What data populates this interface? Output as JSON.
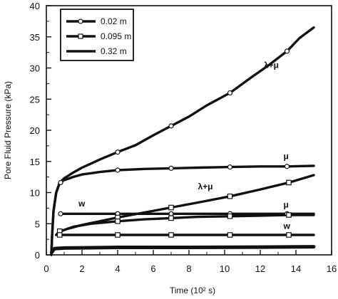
{
  "chart_data": {
    "type": "line",
    "xlabel": "Time (10² s)",
    "ylabel": "Pore Fluid Pressure (kPa)",
    "xlim": [
      0,
      16
    ],
    "ylim": [
      0,
      40
    ],
    "xticks": [
      0,
      2,
      4,
      6,
      8,
      10,
      12,
      14,
      16
    ],
    "yticks": [
      0,
      5,
      10,
      15,
      20,
      25,
      30,
      35,
      40
    ],
    "xtick_labels": [
      "0",
      "2",
      "4",
      "6",
      "8",
      "10",
      "12",
      "14",
      "16"
    ],
    "ytick_labels": [
      "0",
      "5",
      "10",
      "15",
      "20",
      "25",
      "30",
      "35",
      "40"
    ],
    "grid": false,
    "legend_position": "top-left",
    "legend": [
      {
        "label": "0.02 m",
        "marker": "circle"
      },
      {
        "label": "0.095 m",
        "marker": "square"
      },
      {
        "label": "0.32 m",
        "marker": "none"
      }
    ],
    "series": [
      {
        "name": "0.02 m",
        "label": "λ+μ",
        "marker": "circle",
        "x": [
          0.28,
          0.32,
          0.4,
          0.55,
          0.75,
          1.0,
          1.5,
          2.0,
          3.0,
          4.0,
          5.0,
          6.0,
          7.0,
          8.0,
          9.0,
          10.3,
          11.5,
          12.5,
          13.5,
          14.2,
          15.0
        ],
        "y": [
          0.0,
          3.0,
          7.0,
          10.0,
          11.6,
          12.3,
          13.2,
          14.0,
          15.3,
          16.5,
          17.6,
          19.2,
          20.7,
          22.2,
          24.0,
          26.0,
          28.5,
          30.5,
          32.7,
          34.8,
          36.5
        ]
      },
      {
        "name": "0.02 m",
        "label": "μ",
        "marker": "circle",
        "x": [
          0.28,
          0.32,
          0.4,
          0.55,
          0.75,
          1.0,
          1.5,
          2.0,
          3.0,
          4.0,
          5.5,
          7.0,
          8.5,
          10.3,
          12.0,
          13.5,
          15.0
        ],
        "y": [
          0.0,
          3.0,
          7.0,
          10.0,
          11.6,
          12.0,
          12.5,
          12.9,
          13.3,
          13.6,
          13.8,
          13.9,
          14.0,
          14.1,
          14.2,
          14.2,
          14.3
        ]
      },
      {
        "name": "0.02 m",
        "label": "w",
        "marker": "circle",
        "x": [
          0.8,
          2.0,
          4.0,
          7.0,
          10.3,
          13.5,
          15.0
        ],
        "y": [
          6.6,
          6.6,
          6.6,
          6.6,
          6.6,
          6.6,
          6.6
        ]
      },
      {
        "name": "0.095 m",
        "label": "λ+μ",
        "marker": "square",
        "x": [
          0.55,
          0.65,
          0.8,
          1.2,
          2.0,
          3.0,
          4.0,
          5.5,
          7.0,
          8.5,
          10.3,
          12.0,
          13.6,
          15.0
        ],
        "y": [
          3.2,
          3.5,
          3.8,
          4.2,
          4.8,
          5.4,
          6.0,
          6.8,
          7.6,
          8.4,
          9.4,
          10.5,
          11.6,
          12.8
        ]
      },
      {
        "name": "0.095 m",
        "label": "μ",
        "marker": "square",
        "x": [
          0.55,
          0.65,
          0.8,
          1.5,
          2.5,
          4.0,
          5.5,
          7.0,
          8.5,
          10.3,
          12.0,
          13.6,
          15.0
        ],
        "y": [
          3.2,
          3.5,
          3.8,
          4.5,
          5.0,
          5.4,
          5.7,
          5.9,
          6.1,
          6.2,
          6.3,
          6.4,
          6.4
        ]
      },
      {
        "name": "0.095 m",
        "label": "w",
        "marker": "square",
        "x": [
          0.8,
          2.0,
          4.0,
          7.0,
          10.3,
          13.6,
          15.0
        ],
        "y": [
          3.2,
          3.2,
          3.2,
          3.2,
          3.2,
          3.2,
          3.2
        ]
      },
      {
        "name": "0.32 m",
        "label": "",
        "marker": "none",
        "x": [
          0.3,
          0.45,
          1.0,
          4.0,
          8.0,
          12.0,
          15.0
        ],
        "y": [
          0.4,
          1.0,
          1.1,
          1.2,
          1.2,
          1.25,
          1.3
        ]
      }
    ],
    "markers": [
      {
        "series": 0,
        "shape": "circle",
        "x": [
          0.8,
          4.0,
          7.0,
          10.3,
          13.5
        ],
        "y": [
          11.6,
          16.5,
          20.7,
          26.0,
          32.7
        ]
      },
      {
        "series": 1,
        "shape": "circle",
        "x": [
          4.0,
          7.0,
          10.3,
          13.5
        ],
        "y": [
          13.6,
          13.9,
          14.1,
          14.2
        ]
      },
      {
        "series": 2,
        "shape": "circle",
        "x": [
          0.8,
          4.0,
          7.0,
          10.3,
          13.5
        ],
        "y": [
          6.6,
          6.6,
          6.6,
          6.6,
          6.6
        ]
      },
      {
        "series": 3,
        "shape": "square",
        "x": [
          0.75,
          4.0,
          7.0,
          10.3,
          13.6
        ],
        "y": [
          3.8,
          6.0,
          7.6,
          9.4,
          11.6
        ]
      },
      {
        "series": 4,
        "shape": "square",
        "x": [
          4.0,
          7.0,
          10.3,
          13.6
        ],
        "y": [
          5.4,
          5.9,
          6.2,
          6.4
        ]
      },
      {
        "series": 5,
        "shape": "square",
        "x": [
          0.75,
          4.0,
          7.0,
          10.3,
          13.6
        ],
        "y": [
          3.2,
          3.2,
          3.2,
          3.2,
          3.2
        ]
      }
    ],
    "annotations": [
      {
        "text": "λ+μ",
        "x": 12.2,
        "y": 30.0
      },
      {
        "text": "μ",
        "x": 13.3,
        "y": 15.4
      },
      {
        "text": "λ+μ",
        "x": 8.5,
        "y": 10.5
      },
      {
        "text": "w",
        "x": 1.8,
        "y": 7.8
      },
      {
        "text": "μ",
        "x": 13.3,
        "y": 7.6
      },
      {
        "text": "w",
        "x": 13.3,
        "y": 4.2
      }
    ]
  }
}
